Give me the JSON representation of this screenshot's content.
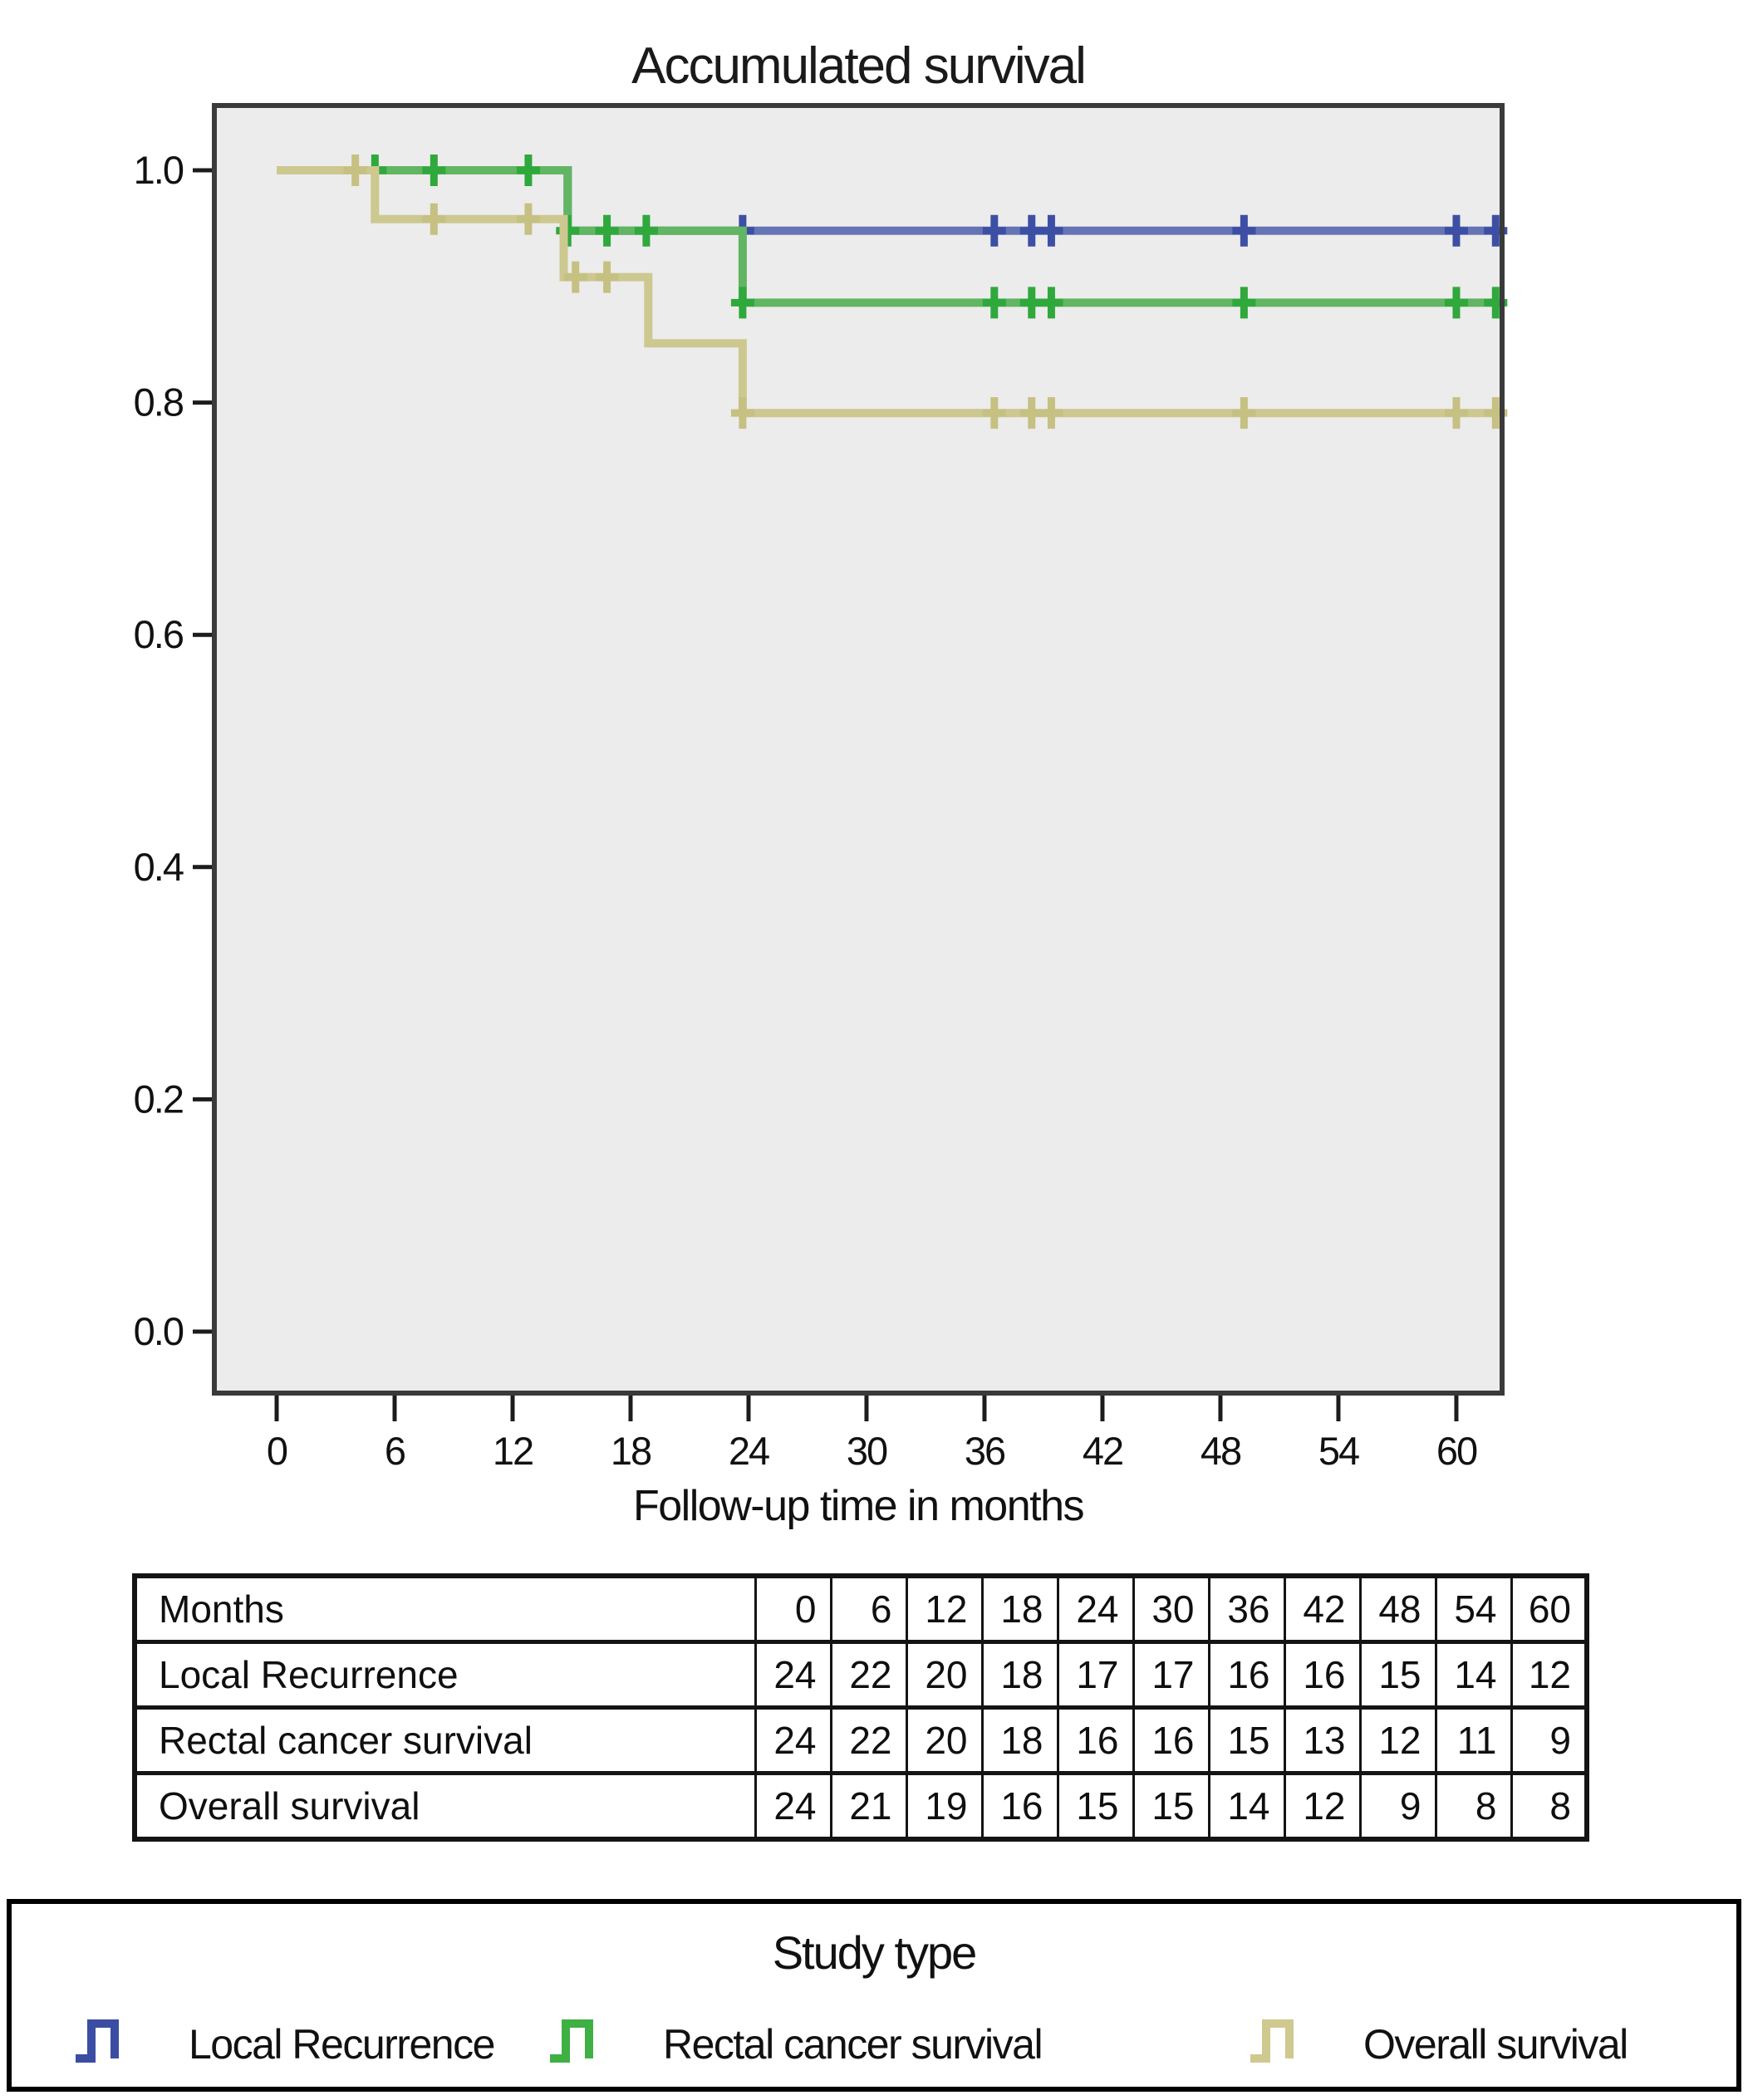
{
  "chart_data": {
    "type": "line",
    "subtype": "kaplan-meier-step",
    "title": "Accumulated survival",
    "xlabel": "Follow-up time in months",
    "ylabel": "",
    "x_ticks": [
      0,
      6,
      12,
      18,
      24,
      30,
      36,
      42,
      48,
      54,
      60
    ],
    "y_ticks": [
      0.0,
      0.2,
      0.4,
      0.6,
      0.8,
      1.0
    ],
    "xlim": [
      -3.2,
      62.3
    ],
    "ylim": [
      -0.053,
      1.056
    ],
    "grid": false,
    "plot_background": "#ececec",
    "frame_color": "#3a3a3a",
    "legend_position": "bottom-box",
    "series": [
      {
        "name": "Local Recurrence",
        "line_color": "#6674b5",
        "mark_color": "#3d4fa4",
        "steps": [
          [
            0,
            1.0
          ],
          [
            14.8,
            1.0
          ],
          [
            14.8,
            0.948
          ],
          [
            62.3,
            0.948
          ]
        ],
        "censors": [
          [
            23.7,
            0.948
          ],
          [
            36.5,
            0.948
          ],
          [
            38.4,
            0.948
          ],
          [
            39.4,
            0.948
          ],
          [
            49.2,
            0.948
          ],
          [
            60,
            0.948
          ],
          [
            62,
            0.948
          ]
        ]
      },
      {
        "name": "Rectal cancer survival",
        "line_color": "#62b562",
        "mark_color": "#2fa83c",
        "steps": [
          [
            0,
            1.0
          ],
          [
            14.8,
            1.0
          ],
          [
            14.8,
            0.948
          ],
          [
            23.7,
            0.948
          ],
          [
            23.7,
            0.886
          ],
          [
            62.3,
            0.886
          ]
        ],
        "censors": [
          [
            5,
            1.0
          ],
          [
            8,
            1.0
          ],
          [
            12.8,
            1.0
          ],
          [
            14.8,
            0.948
          ],
          [
            16.8,
            0.948
          ],
          [
            18.8,
            0.948
          ],
          [
            23.7,
            0.886
          ],
          [
            36.5,
            0.886
          ],
          [
            38.4,
            0.886
          ],
          [
            39.4,
            0.886
          ],
          [
            49.2,
            0.886
          ],
          [
            60,
            0.886
          ],
          [
            62,
            0.886
          ]
        ]
      },
      {
        "name": "Overall survival",
        "line_color": "#cdc88f",
        "mark_color": "#c6c083",
        "steps": [
          [
            0,
            1.0
          ],
          [
            5,
            1.0
          ],
          [
            5,
            0.958
          ],
          [
            14.6,
            0.958
          ],
          [
            14.6,
            0.908
          ],
          [
            18.9,
            0.908
          ],
          [
            18.9,
            0.851
          ],
          [
            23.7,
            0.851
          ],
          [
            23.7,
            0.791
          ],
          [
            62.3,
            0.791
          ]
        ],
        "censors": [
          [
            4,
            1.0
          ],
          [
            8,
            0.958
          ],
          [
            12.8,
            0.958
          ],
          [
            15.2,
            0.908
          ],
          [
            16.8,
            0.908
          ],
          [
            23.7,
            0.791
          ],
          [
            36.5,
            0.791
          ],
          [
            38.4,
            0.791
          ],
          [
            39.4,
            0.791
          ],
          [
            49.2,
            0.791
          ],
          [
            60,
            0.791
          ],
          [
            62,
            0.791
          ]
        ]
      }
    ]
  },
  "risk_table": {
    "header_label": "Months",
    "header_values": [
      "0",
      "6",
      "12",
      "18",
      "24",
      "30",
      "36",
      "42",
      "48",
      "54",
      "60"
    ],
    "rows": [
      {
        "label": "Local Recurrence",
        "values": [
          "24",
          "22",
          "20",
          "18",
          "17",
          "17",
          "16",
          "16",
          "15",
          "14",
          "12"
        ]
      },
      {
        "label": "Rectal cancer survival",
        "values": [
          "24",
          "22",
          "20",
          "18",
          "16",
          "16",
          "15",
          "13",
          "12",
          "11",
          "9"
        ]
      },
      {
        "label": "Overall survival",
        "values": [
          "24",
          "21",
          "19",
          "16",
          "15",
          "15",
          "14",
          "12",
          "9",
          "8",
          "8"
        ]
      }
    ]
  },
  "legend": {
    "title": "Study type",
    "entries": [
      {
        "label": "Local Recurrence",
        "color": "#3b4da2"
      },
      {
        "label": "Rectal cancer survival",
        "color": "#3fb044"
      },
      {
        "label": "Overall survival",
        "color": "#cfc98f"
      }
    ]
  }
}
